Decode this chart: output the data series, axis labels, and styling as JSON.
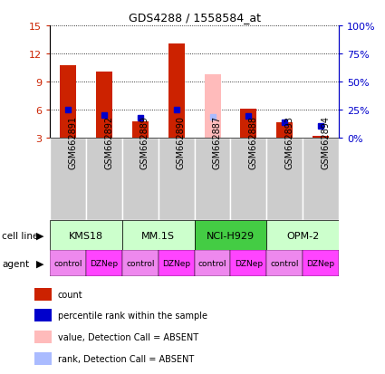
{
  "title": "GDS4288 / 1558584_at",
  "samples": [
    "GSM662891",
    "GSM662892",
    "GSM662889",
    "GSM662890",
    "GSM662887",
    "GSM662888",
    "GSM662893",
    "GSM662894"
  ],
  "count_values": [
    10.7,
    10.1,
    4.8,
    13.1,
    null,
    6.1,
    4.7,
    3.2
  ],
  "count_absent": [
    null,
    null,
    null,
    null,
    9.8,
    null,
    null,
    null
  ],
  "rank_values": [
    6.0,
    5.4,
    5.1,
    6.0,
    null,
    5.3,
    4.7,
    4.3
  ],
  "rank_absent": [
    null,
    null,
    null,
    null,
    5.2,
    null,
    null,
    null
  ],
  "cell_lines": [
    {
      "label": "KMS18",
      "start": 0,
      "end": 2
    },
    {
      "label": "MM.1S",
      "start": 2,
      "end": 4
    },
    {
      "label": "NCI-H929",
      "start": 4,
      "end": 6
    },
    {
      "label": "OPM-2",
      "start": 6,
      "end": 8
    }
  ],
  "agents": [
    "control",
    "DZNep",
    "control",
    "DZNep",
    "control",
    "DZNep",
    "control",
    "DZNep"
  ],
  "ylim_left": [
    3,
    15
  ],
  "ylim_right": [
    0,
    100
  ],
  "yticks_left": [
    3,
    6,
    9,
    12,
    15
  ],
  "yticks_right": [
    0,
    25,
    50,
    75,
    100
  ],
  "ytick_labels_left": [
    "3",
    "6",
    "9",
    "12",
    "15"
  ],
  "ytick_labels_right": [
    "0%",
    "25%",
    "50%",
    "75%",
    "100%"
  ],
  "bar_width": 0.45,
  "count_color": "#cc2200",
  "count_absent_color": "#ffbbbb",
  "rank_color": "#0000cc",
  "rank_absent_color": "#aabbff",
  "cell_line_colors": [
    "#ccffcc",
    "#ccffcc",
    "#44cc44",
    "#ccffcc"
  ],
  "agent_control_color": "#ee88ee",
  "agent_dznep_color": "#ff44ff",
  "sample_bg_color": "#cccccc",
  "left_label_color": "#cc2200",
  "right_label_color": "#0000cc",
  "legend_items": [
    {
      "label": "count",
      "color": "#cc2200"
    },
    {
      "label": "percentile rank within the sample",
      "color": "#0000cc"
    },
    {
      "label": "value, Detection Call = ABSENT",
      "color": "#ffbbbb"
    },
    {
      "label": "rank, Detection Call = ABSENT",
      "color": "#aabbff"
    }
  ]
}
